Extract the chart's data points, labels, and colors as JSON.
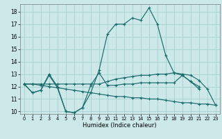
{
  "xlabel": "Humidex (Indice chaleur)",
  "bg_color": "#cce8e8",
  "grid_color": "#aad4d4",
  "line_color": "#1a6b6b",
  "xlim": [
    -0.5,
    23.5
  ],
  "ylim": [
    9.8,
    18.6
  ],
  "yticks": [
    10,
    11,
    12,
    13,
    14,
    15,
    16,
    17,
    18
  ],
  "xticks": [
    0,
    1,
    2,
    3,
    4,
    5,
    6,
    7,
    8,
    9,
    10,
    11,
    12,
    13,
    14,
    15,
    16,
    17,
    18,
    19,
    20,
    21,
    22,
    23
  ],
  "series": [
    [
      12.2,
      11.5,
      11.7,
      13.0,
      12.0,
      10.0,
      9.9,
      10.3,
      11.5,
      13.3,
      16.2,
      17.0,
      17.0,
      17.5,
      17.3,
      18.3,
      17.0,
      14.5,
      13.1,
      12.9,
      12.4,
      11.8,
      null,
      null
    ],
    [
      12.2,
      11.5,
      11.7,
      12.9,
      11.9,
      10.0,
      9.9,
      10.3,
      12.1,
      13.1,
      12.1,
      12.1,
      12.2,
      12.2,
      12.3,
      12.3,
      12.3,
      12.3,
      12.3,
      12.9,
      12.4,
      12.0,
      null,
      null
    ],
    [
      12.2,
      12.2,
      12.2,
      12.2,
      12.2,
      12.2,
      12.2,
      12.2,
      12.2,
      12.2,
      12.4,
      12.6,
      12.7,
      12.8,
      12.9,
      12.9,
      13.0,
      13.0,
      13.1,
      13.0,
      12.9,
      12.5,
      11.8,
      10.5
    ],
    [
      12.2,
      12.2,
      12.1,
      12.0,
      11.9,
      11.8,
      11.7,
      11.6,
      11.5,
      11.4,
      11.3,
      11.2,
      11.2,
      11.1,
      11.1,
      11.0,
      11.0,
      10.9,
      10.8,
      10.7,
      10.7,
      10.6,
      10.6,
      10.5
    ]
  ]
}
